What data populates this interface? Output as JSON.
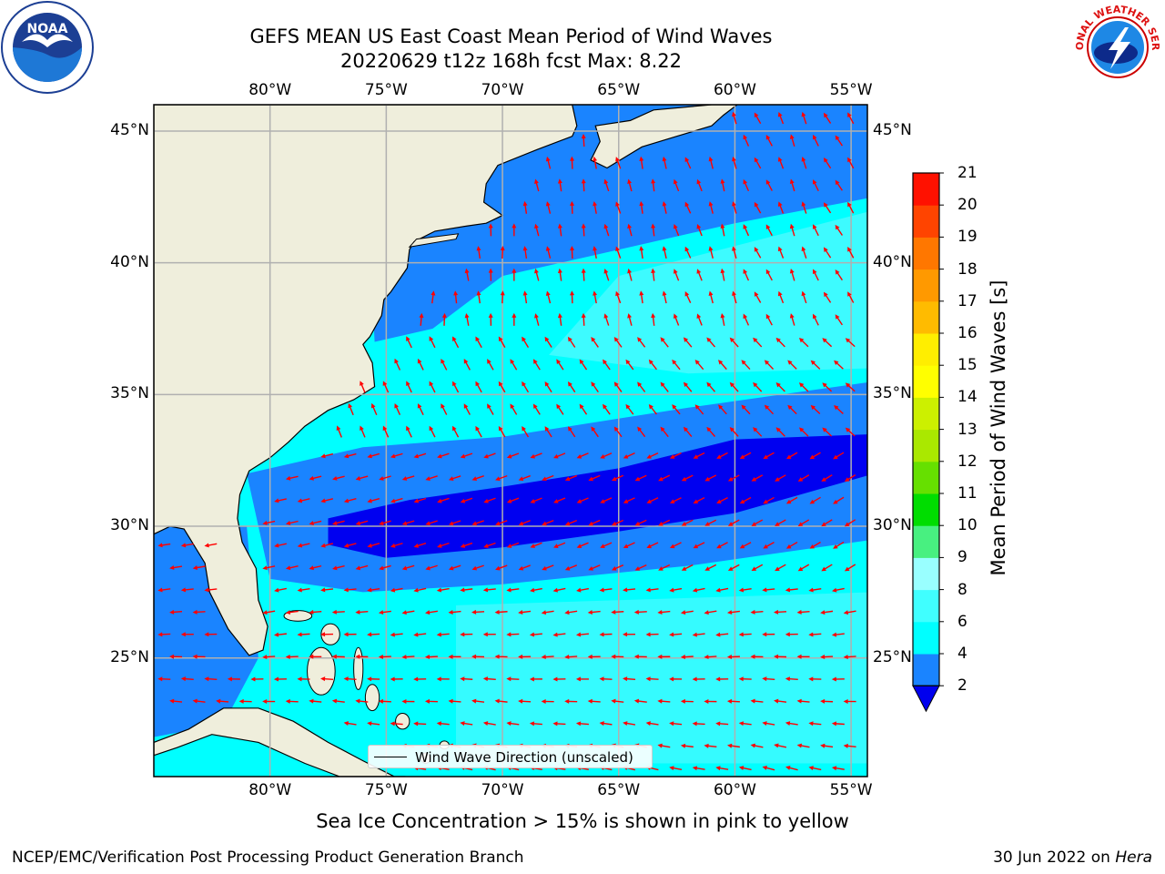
{
  "title": {
    "line1": "GEFS MEAN US East Coast Mean Period of Wind Waves",
    "line2": "20220629 t12z 168h fcst   Max: 8.22"
  },
  "logos": {
    "noaa": {
      "text": "NOAA",
      "icon": "noaa-seagull-logo"
    },
    "nws": {
      "text": "NATIONAL WEATHER SERVICE",
      "icon": "nws-lightning-cloud-logo"
    }
  },
  "map": {
    "lon_labels": [
      "80°W",
      "75°W",
      "70°W",
      "65°W",
      "60°W",
      "55°W"
    ],
    "lon_values": [
      -80,
      -75,
      -70,
      -65,
      -60,
      -55
    ],
    "lat_labels": [
      "45°N",
      "40°N",
      "35°N",
      "30°N",
      "25°N"
    ],
    "lat_values": [
      45,
      40,
      35,
      30,
      25
    ],
    "extent": {
      "lon_min": -85,
      "lon_max": -54.3,
      "lat_min": 20.5,
      "lat_max": 46
    },
    "colors": {
      "land": "#efeedc",
      "ocean_2_4": "#1a84ff",
      "ocean_4_6": "#00ffff",
      "ocean_6_8": "#4cfaff",
      "ocean_lt2": "#0000f0",
      "arrow": "#ff0000",
      "grid": "#b0b0b0"
    }
  },
  "legend": {
    "label": "Wind Wave Direction (unscaled)"
  },
  "colorbar": {
    "title": "Mean Period of Wind Waves [s]",
    "ticks": [
      "21",
      "20",
      "19",
      "18",
      "17",
      "16",
      "15",
      "14",
      "13",
      "12",
      "11",
      "10",
      "9",
      "8",
      "6",
      "4",
      "2"
    ],
    "colors": [
      "#0000ee",
      "#1a84ff",
      "#00ffff",
      "#40ffff",
      "#99ffff",
      "#48f080",
      "#00dd00",
      "#66e000",
      "#aae800",
      "#ccf000",
      "#ffff00",
      "#ffee00",
      "#ffbb00",
      "#ff9900",
      "#ff7700",
      "#ff4400",
      "#ff1100",
      "#ff0000"
    ]
  },
  "caption": "Sea Ice Concentration > 15% is shown in pink to yellow",
  "footer": {
    "left": "NCEP/EMC/Verification Post Processing Product Generation Branch",
    "right_prefix": "30 Jun 2022 on ",
    "right_host": "Hera"
  }
}
